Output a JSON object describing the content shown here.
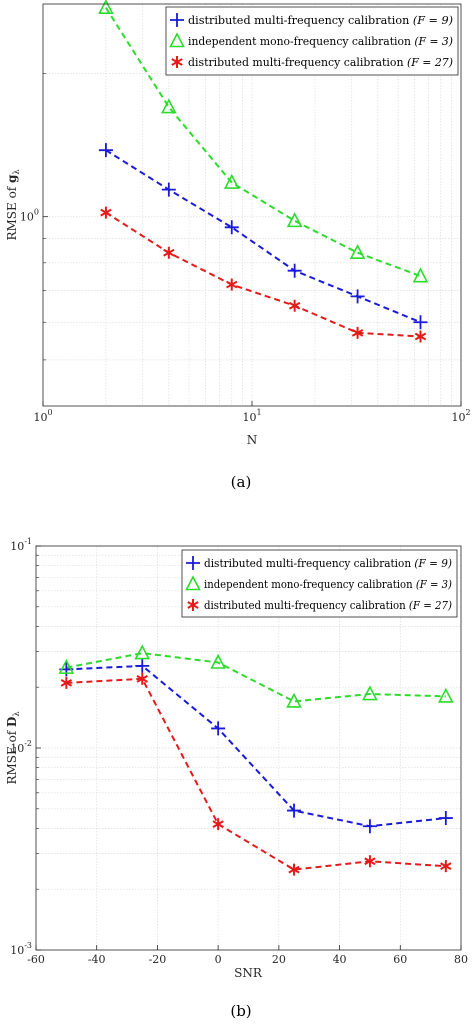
{
  "chart_data": [
    {
      "type": "line",
      "caption": "(a)",
      "xlabel": "N",
      "ylabel": "RMSE of g_λ",
      "xscale": "log",
      "yscale": "log",
      "xlim": [
        1,
        100
      ],
      "ylim": [
        0.4,
        2.8
      ],
      "grid": true,
      "legend_position": "top-right",
      "x_ticks": [
        1,
        10,
        100
      ],
      "x_tick_labels": [
        {
          "base": "10",
          "exp": "0"
        },
        {
          "base": "10",
          "exp": "1"
        },
        {
          "base": "10",
          "exp": "2"
        }
      ],
      "y_ticks": [
        1
      ],
      "y_tick_labels": [
        {
          "base": "10",
          "exp": "0"
        }
      ],
      "series": [
        {
          "name": "distributed multi-frequency calibration (F = 9)",
          "legend_main": "distributed multi-frequency calibration ",
          "legend_param": "(F = 9)",
          "color": "#1a1adb",
          "marker": "plus",
          "x": [
            2,
            4,
            8,
            16,
            32,
            64
          ],
          "y": [
            1.38,
            1.14,
            0.95,
            0.77,
            0.68,
            0.6
          ]
        },
        {
          "name": "independent mono-frequency calibration (F = 3)",
          "legend_main": "independent mono-frequency calibration ",
          "legend_param": "(F = 3)",
          "color": "#2ddb2d",
          "marker": "triangle",
          "x": [
            2,
            4,
            8,
            16,
            32,
            64
          ],
          "y": [
            2.75,
            1.7,
            1.18,
            0.98,
            0.84,
            0.75
          ]
        },
        {
          "name": "distributed multi-frequency calibration (F = 27)",
          "legend_main": "distributed multi-frequency calibration ",
          "legend_param": "(F = 27)",
          "color": "#e61a1a",
          "marker": "asterisk",
          "x": [
            2,
            4,
            8,
            16,
            32,
            64
          ],
          "y": [
            1.02,
            0.84,
            0.72,
            0.65,
            0.57,
            0.56
          ]
        }
      ]
    },
    {
      "type": "line",
      "caption": "(b)",
      "xlabel": "SNR",
      "ylabel": "RMSE of D_λ",
      "xscale": "linear",
      "yscale": "log",
      "xlim": [
        -60,
        80
      ],
      "ylim": [
        0.001,
        0.1
      ],
      "grid": true,
      "legend_position": "top-right",
      "x_ticks": [
        -60,
        -40,
        -20,
        0,
        20,
        40,
        60,
        80
      ],
      "x_tick_labels": [
        "-60",
        "-40",
        "-20",
        "0",
        "20",
        "40",
        "60",
        "80"
      ],
      "y_ticks": [
        0.001,
        0.01,
        0.1
      ],
      "y_tick_labels": [
        {
          "base": "10",
          "exp": "-3"
        },
        {
          "base": "10",
          "exp": "-2"
        },
        {
          "base": "10",
          "exp": "-1"
        }
      ],
      "series": [
        {
          "name": "distributed multi-frequency calibration (F = 9)",
          "legend_main": "distributed multi-frequency calibration ",
          "legend_param": "(F = 9)",
          "color": "#1a1adb",
          "marker": "plus",
          "x": [
            -50,
            -25,
            0,
            25,
            50,
            75
          ],
          "y": [
            0.0245,
            0.0255,
            0.0125,
            0.0049,
            0.0041,
            0.0045
          ]
        },
        {
          "name": "independent mono-frequency calibration (F = 3)",
          "legend_main": "independent mono-frequency calibration ",
          "legend_param": "(F = 3)",
          "color": "#2ddb2d",
          "marker": "triangle",
          "x": [
            -50,
            -25,
            0,
            25,
            50,
            75
          ],
          "y": [
            0.025,
            0.0295,
            0.0265,
            0.017,
            0.0185,
            0.018
          ]
        },
        {
          "name": "distributed multi-frequency calibration (F = 27)",
          "legend_main": "distributed multi-frequency calibration ",
          "legend_param": "(F = 27)",
          "color": "#e61a1a",
          "marker": "asterisk",
          "x": [
            -50,
            -25,
            0,
            25,
            50,
            75
          ],
          "y": [
            0.021,
            0.022,
            0.0042,
            0.0025,
            0.00275,
            0.0026
          ]
        }
      ]
    }
  ]
}
